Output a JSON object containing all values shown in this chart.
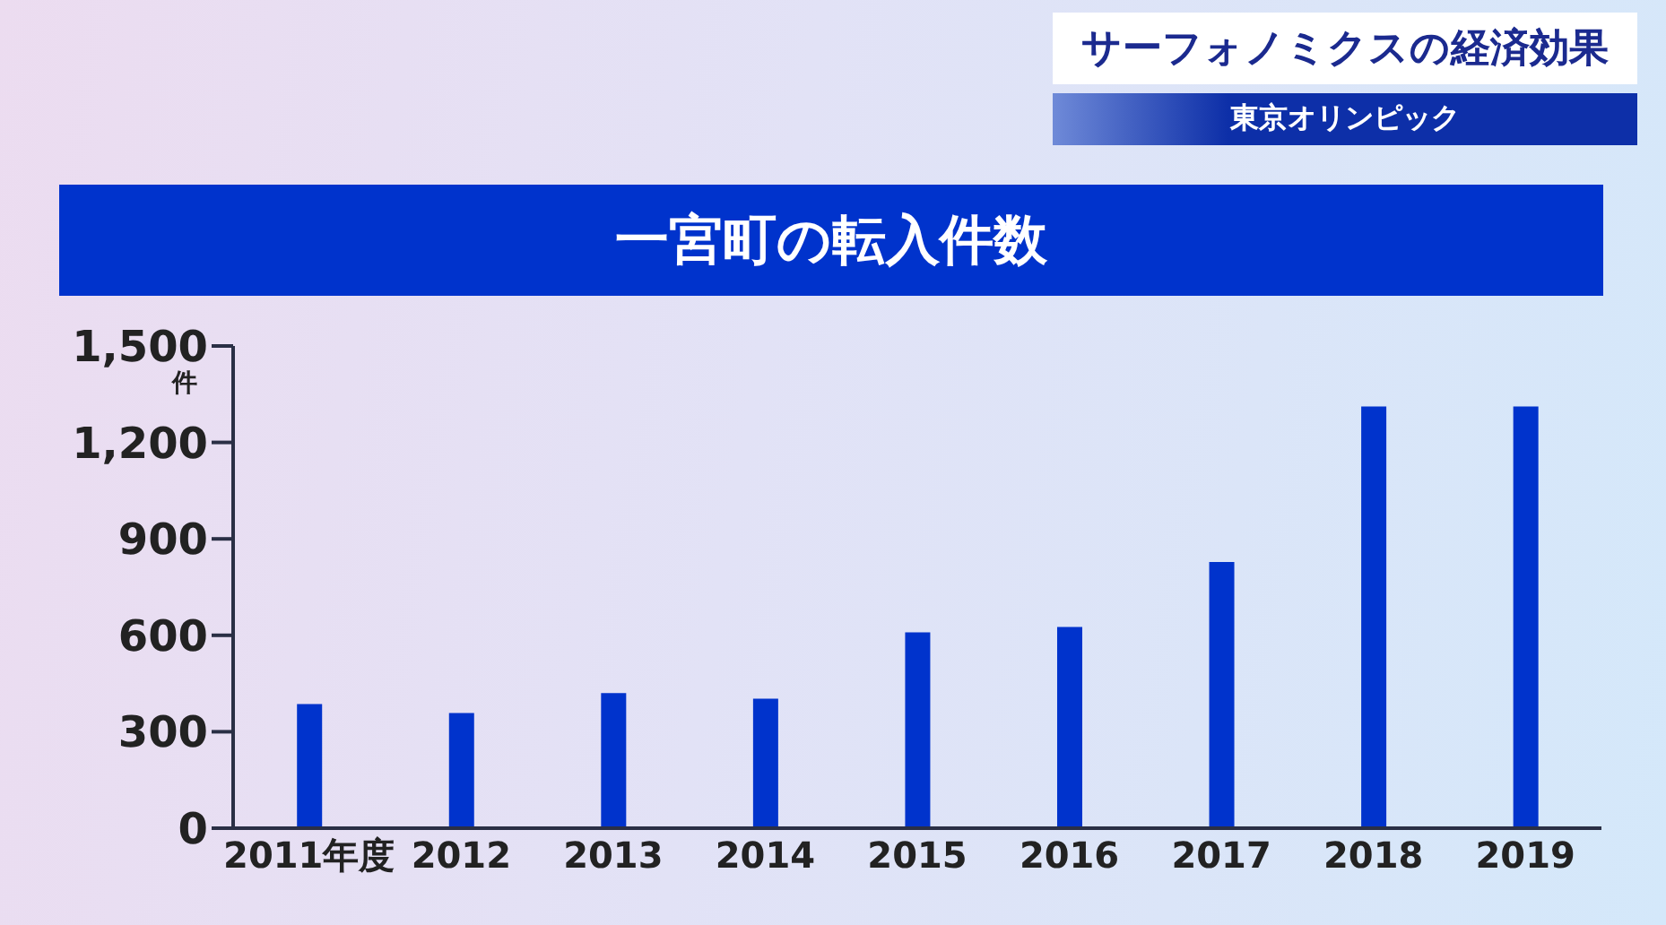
{
  "chart_data": {
    "type": "bar",
    "title": "一宮町の転入件数",
    "ylabel": "件",
    "annotations": [
      "サーフォノミクスの経済効果",
      "東京オリンピック"
    ],
    "categories": [
      "2011年度",
      "2012",
      "2013",
      "2014",
      "2015",
      "2016",
      "2017",
      "2018",
      "2019"
    ],
    "values": [
      386,
      358,
      420,
      403,
      609,
      626,
      828,
      1312,
      1312
    ],
    "color": "#0033cc",
    "ylim": [
      0,
      1500
    ],
    "yticks": [
      0,
      300,
      600,
      900,
      {
        "value": 1200,
        "label": "1,200"
      },
      {
        "value": 1500,
        "label": "1,500"
      }
    ],
    "grid": false,
    "legend": false
  }
}
